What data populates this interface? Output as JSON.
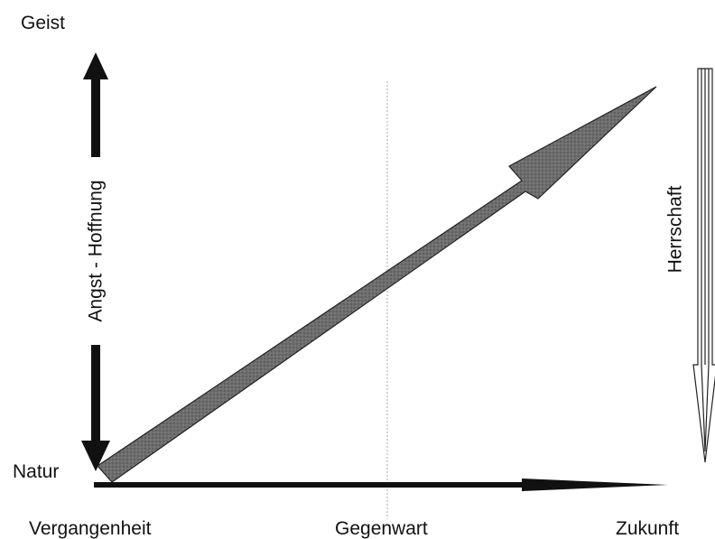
{
  "labels": {
    "top_left": "Geist",
    "bottom_left": "Natur",
    "axis_left": "Vergangenheit",
    "axis_center": "Gegenwart",
    "axis_right": "Zukunft",
    "vertical_axis": "Angst - Hoffnung",
    "right_arrow": "Herrschaft"
  },
  "colors": {
    "ink": "#111111",
    "diagonal_fill": "#6a6a6a",
    "guide_line": "#aaaaaa",
    "hollow_arrow_stroke": "#222222"
  }
}
